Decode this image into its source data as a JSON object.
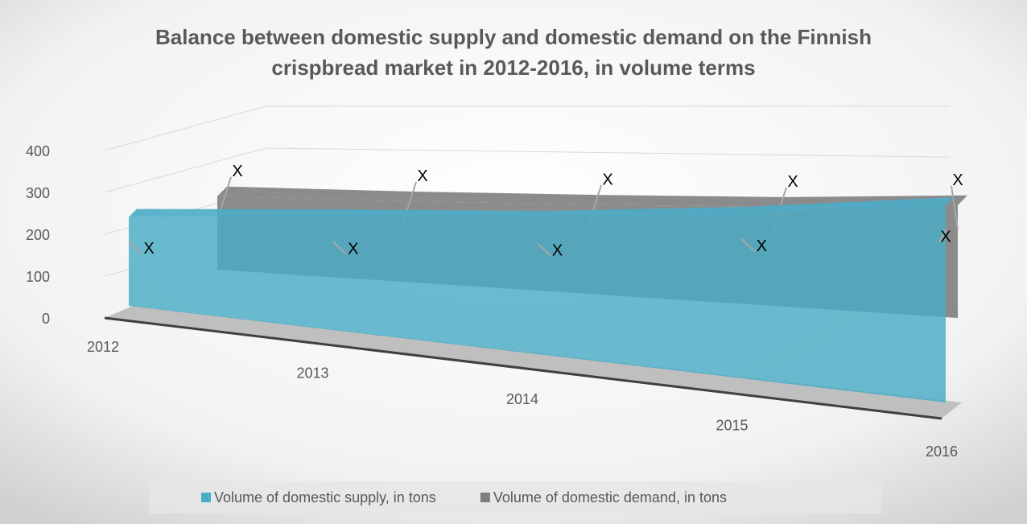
{
  "chart_data": {
    "type": "area3d",
    "title": "Balance between domestic supply and domestic demand on the Finnish crispbread market in 2012-2016, in volume terms",
    "categories": [
      "2012",
      "2013",
      "2014",
      "2015",
      "2016"
    ],
    "series": [
      {
        "name": "Volume of domestic supply, in tons",
        "color": "#4bacc6",
        "values": [
          240,
          235,
          230,
          235,
          245
        ],
        "value_labels": [
          "X",
          "X",
          "X",
          "X",
          "X"
        ]
      },
      {
        "name": "Volume of domestic demand, in tons",
        "color": "#7f7f7f",
        "values": [
          285,
          265,
          255,
          250,
          255
        ],
        "value_labels": [
          "X",
          "X",
          "X",
          "X",
          "X"
        ]
      }
    ],
    "ylim": [
      0,
      400
    ],
    "yticks": [
      0,
      100,
      200,
      300,
      400
    ],
    "grid": true,
    "legend": "bottom"
  }
}
